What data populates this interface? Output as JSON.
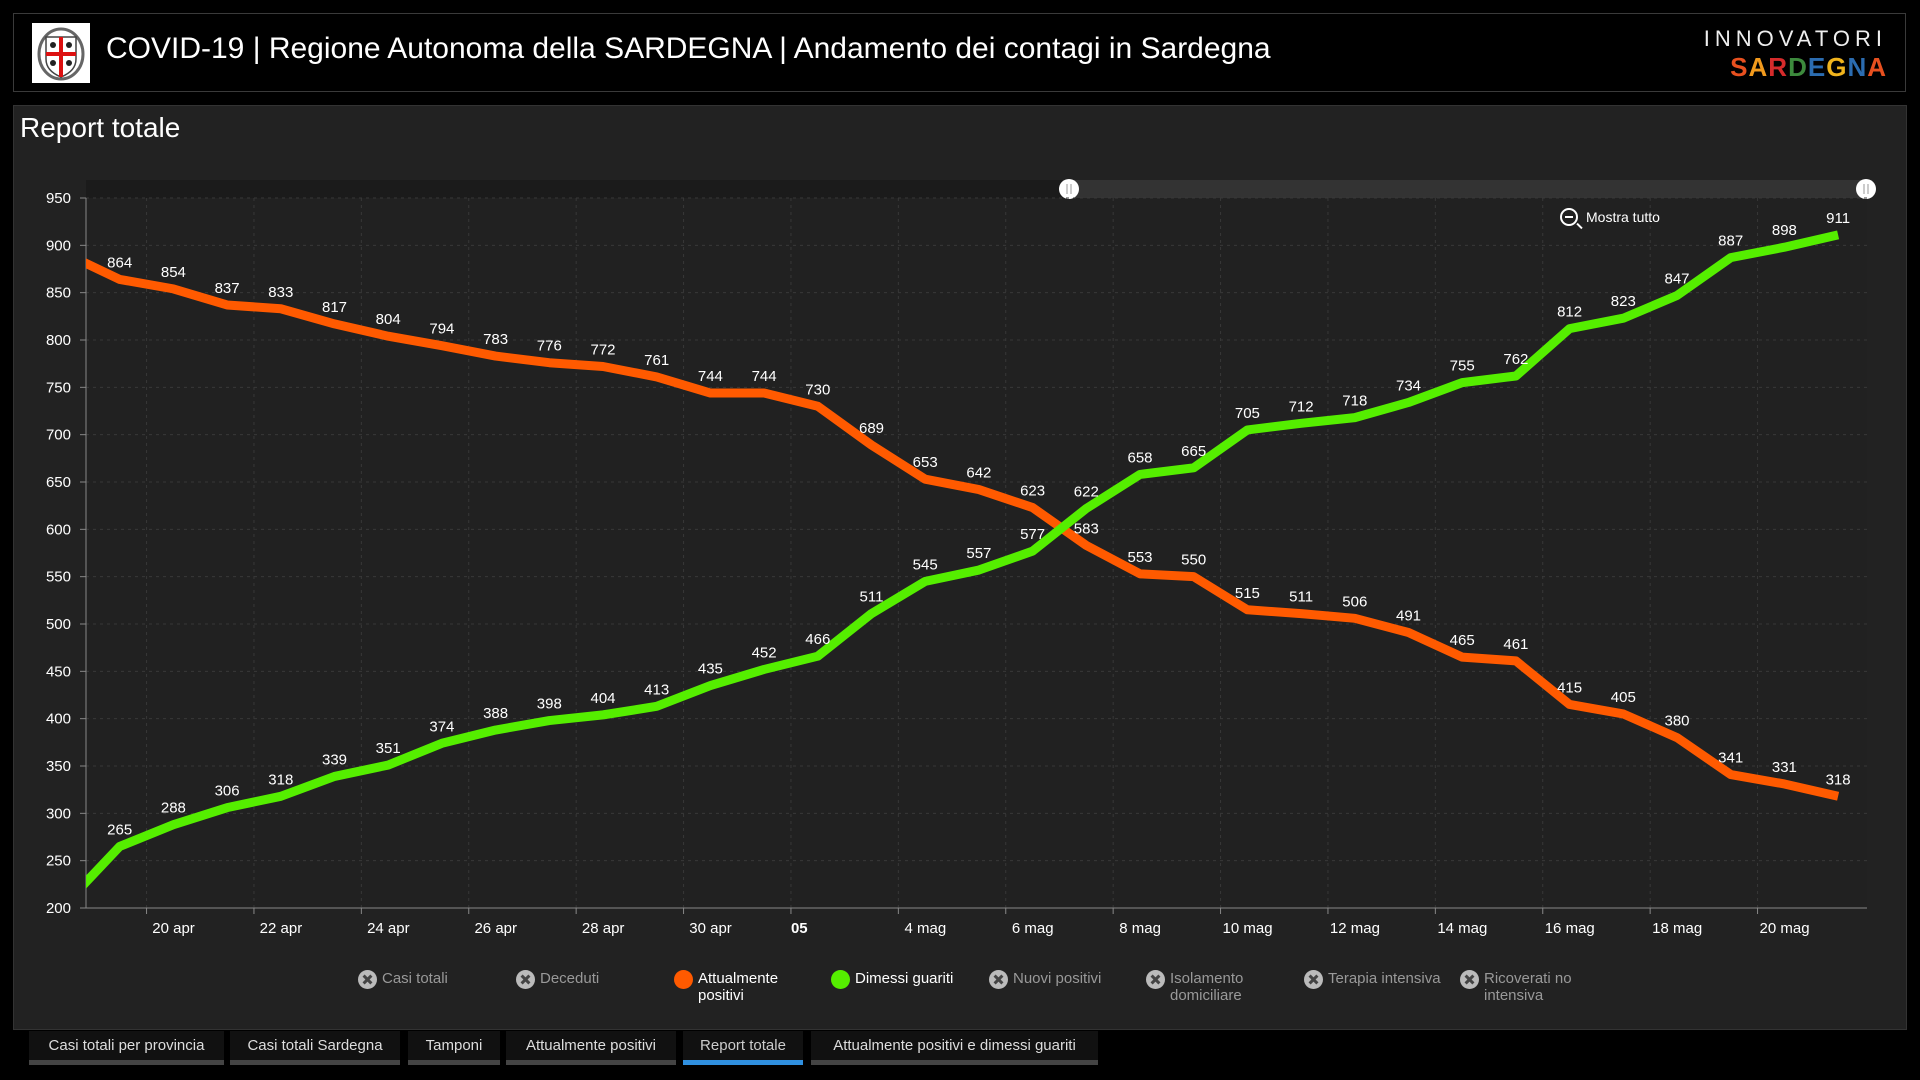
{
  "header": {
    "title": "COVID-19 | Regione Autonoma della SARDEGNA | Andamento dei contagi in Sardegna",
    "brand_top": "INNOVATORI",
    "brand_bottom": "SARDEGNA",
    "brand_colors": [
      "#e8501f",
      "#f29a1d",
      "#d62b2b",
      "#3d8a3d",
      "#2b6cb0",
      "#f0b41d",
      "#2b6cb0",
      "#e8501f"
    ]
  },
  "panel": {
    "title": "Report totale",
    "zoom_out_label": "Mostra tutto"
  },
  "legend": [
    {
      "label": "Casi totali",
      "active": false,
      "color": "#bbbbbb"
    },
    {
      "label": "Deceduti",
      "active": false,
      "color": "#bbbbbb"
    },
    {
      "label": "Attualmente positivi",
      "active": true,
      "color": "#ff5a00"
    },
    {
      "label": "Dimessi guariti",
      "active": true,
      "color": "#55ee00"
    },
    {
      "label": "Nuovi positivi",
      "active": false,
      "color": "#bbbbbb"
    },
    {
      "label": "Isolamento domiciliare",
      "active": false,
      "color": "#bbbbbb"
    },
    {
      "label": "Terapia intensiva",
      "active": false,
      "color": "#bbbbbb"
    },
    {
      "label": "Ricoverati no intensiva",
      "active": false,
      "color": "#bbbbbb"
    }
  ],
  "tabs": [
    {
      "label": "Casi totali per provincia",
      "active": false
    },
    {
      "label": "Casi totali Sardegna",
      "active": false
    },
    {
      "label": "Tamponi",
      "active": false
    },
    {
      "label": "Attualmente positivi",
      "active": false
    },
    {
      "label": "Report totale",
      "active": true
    },
    {
      "label": "Attualmente positivi e dimessi guariti",
      "active": false
    }
  ],
  "chart_data": {
    "type": "line",
    "title": "Report totale",
    "x": [
      "18 apr",
      "19 apr",
      "20 apr",
      "21 apr",
      "22 apr",
      "23 apr",
      "24 apr",
      "25 apr",
      "26 apr",
      "27 apr",
      "28 apr",
      "29 apr",
      "30 apr",
      "1 mag",
      "2 mag",
      "3 mag",
      "4 mag",
      "5 mag",
      "6 mag",
      "7 mag",
      "8 mag",
      "9 mag",
      "10 mag",
      "11 mag",
      "12 mag",
      "13 mag",
      "14 mag",
      "15 mag",
      "16 mag",
      "17 mag",
      "18 mag",
      "19 mag",
      "20 mag",
      "21 mag"
    ],
    "xticks": [
      "20 apr",
      "22 apr",
      "24 apr",
      "26 apr",
      "28 apr",
      "30 apr",
      "05",
      "4 mag",
      "6 mag",
      "8 mag",
      "10 mag",
      "12 mag",
      "14 mag",
      "16 mag",
      "18 mag",
      "20 mag"
    ],
    "yticks": [
      950,
      900,
      850,
      800,
      750,
      700,
      650,
      600,
      550,
      500,
      450,
      400,
      350,
      300,
      250,
      200
    ],
    "ylim": [
      200,
      950
    ],
    "grid": true,
    "series": [
      {
        "name": "Attualmente positivi",
        "color": "#ff5a00",
        "values": [
          891,
          864,
          854,
          837,
          833,
          817,
          804,
          794,
          783,
          776,
          772,
          761,
          744,
          744,
          730,
          689,
          653,
          642,
          623,
          583,
          553,
          550,
          515,
          511,
          506,
          491,
          465,
          461,
          415,
          405,
          380,
          341,
          331,
          318
        ]
      },
      {
        "name": "Dimessi guariti",
        "color": "#55ee00",
        "values": [
          205,
          265,
          288,
          306,
          318,
          339,
          351,
          374,
          388,
          398,
          404,
          413,
          435,
          452,
          466,
          511,
          545,
          557,
          577,
          622,
          658,
          665,
          705,
          712,
          718,
          734,
          755,
          762,
          812,
          823,
          847,
          887,
          898,
          911
        ]
      }
    ]
  }
}
